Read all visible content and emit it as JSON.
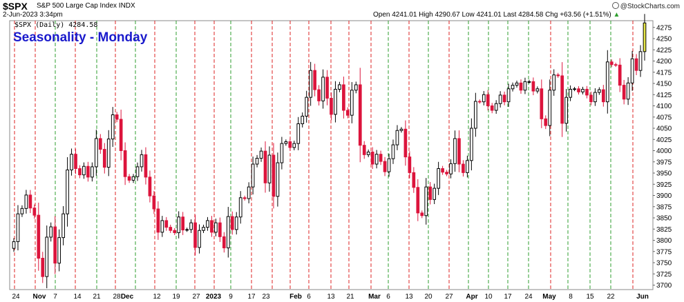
{
  "header": {
    "symbol": "$SPX",
    "description": "S&P 500 Large Cap Index INDX",
    "timestamp": "2-Jun-2023 3:34pm",
    "ohlc_line": "Open 4241.01  High 4290.67  Low 4241.01  Last 4284.58  Chg +63.56 (+1.51%)",
    "change_arrow": "▲",
    "brand": "@StockCharts.com"
  },
  "legend": {
    "text": "$SPX (Daily) 4284.58"
  },
  "annotation": {
    "text": "Seasonality - Monday"
  },
  "colors": {
    "up": "#000000",
    "down": "#dc143c",
    "monday_line": "#2e9e2e",
    "friday_line": "#dd2222",
    "annotation": "#1a1acc",
    "last_bar": "#e8e84a"
  },
  "chart_data": {
    "type": "candlestick",
    "title": "Seasonality - Monday",
    "ylim": [
      3690,
      4290
    ],
    "y_ticks": [
      3700,
      3725,
      3750,
      3775,
      3800,
      3825,
      3850,
      3875,
      3900,
      3925,
      3950,
      3975,
      4000,
      4025,
      4050,
      4075,
      4100,
      4125,
      4150,
      4175,
      4200,
      4225,
      4250,
      4275
    ],
    "x_tick_labels": [
      "24",
      "Nov",
      "7",
      "14",
      "21",
      "28",
      "Dec",
      "12",
      "19",
      "27",
      "2023",
      "9",
      "17",
      "23",
      "Feb",
      "6",
      "13",
      "21",
      "Mar",
      "6",
      "13",
      "20",
      "27",
      "Apr",
      "10",
      "17",
      "24",
      "May",
      "8",
      "15",
      "22",
      "Jun"
    ],
    "closes": [
      3797,
      3859,
      3871,
      3901,
      3872,
      3856,
      3760,
      3719,
      3807,
      3830,
      3749,
      3806,
      3859,
      3957,
      3992,
      3960,
      3946,
      3965,
      3941,
      3964,
      4027,
      4003,
      3963,
      4026,
      4080,
      4070,
      4000,
      3942,
      3934,
      3942,
      3964,
      3991,
      3941,
      3899,
      3870,
      3818,
      3844,
      3829,
      3822,
      3817,
      3852,
      3823,
      3824,
      3839,
      3784,
      3822,
      3829,
      3844,
      3818,
      3839,
      3808,
      3783,
      3853,
      3824,
      3852,
      3895,
      3893,
      3919,
      3970,
      3983,
      3999,
      3928,
      3990,
      3898,
      3973,
      4016,
      4020,
      4007,
      4016,
      4060,
      4077,
      4119,
      4179,
      4136,
      4111,
      4164,
      4117,
      4081,
      4137,
      4147,
      4090,
      4079,
      4135,
      4147,
      4012,
      3991,
      3997,
      3970,
      3992,
      3976,
      3953,
      3982,
      4013,
      4045,
      4048,
      3986,
      3951,
      3918,
      3861,
      3855,
      3919,
      3891,
      3916,
      3960,
      3952,
      3948,
      3971,
      4027,
      3970,
      3951,
      3978,
      4050,
      4110,
      4109,
      4125,
      4100,
      4090,
      4105,
      4124,
      4109,
      4138,
      4146,
      4151,
      4135,
      4154,
      4154,
      4133,
      4138,
      4071,
      4056,
      4135,
      4169,
      4167,
      4061,
      4119,
      4137,
      4138,
      4131,
      4137,
      4124,
      4109,
      4130,
      4136,
      4109,
      4198,
      4192,
      4191,
      4146,
      4115,
      4151,
      4205,
      4179,
      4221,
      4285
    ]
  }
}
